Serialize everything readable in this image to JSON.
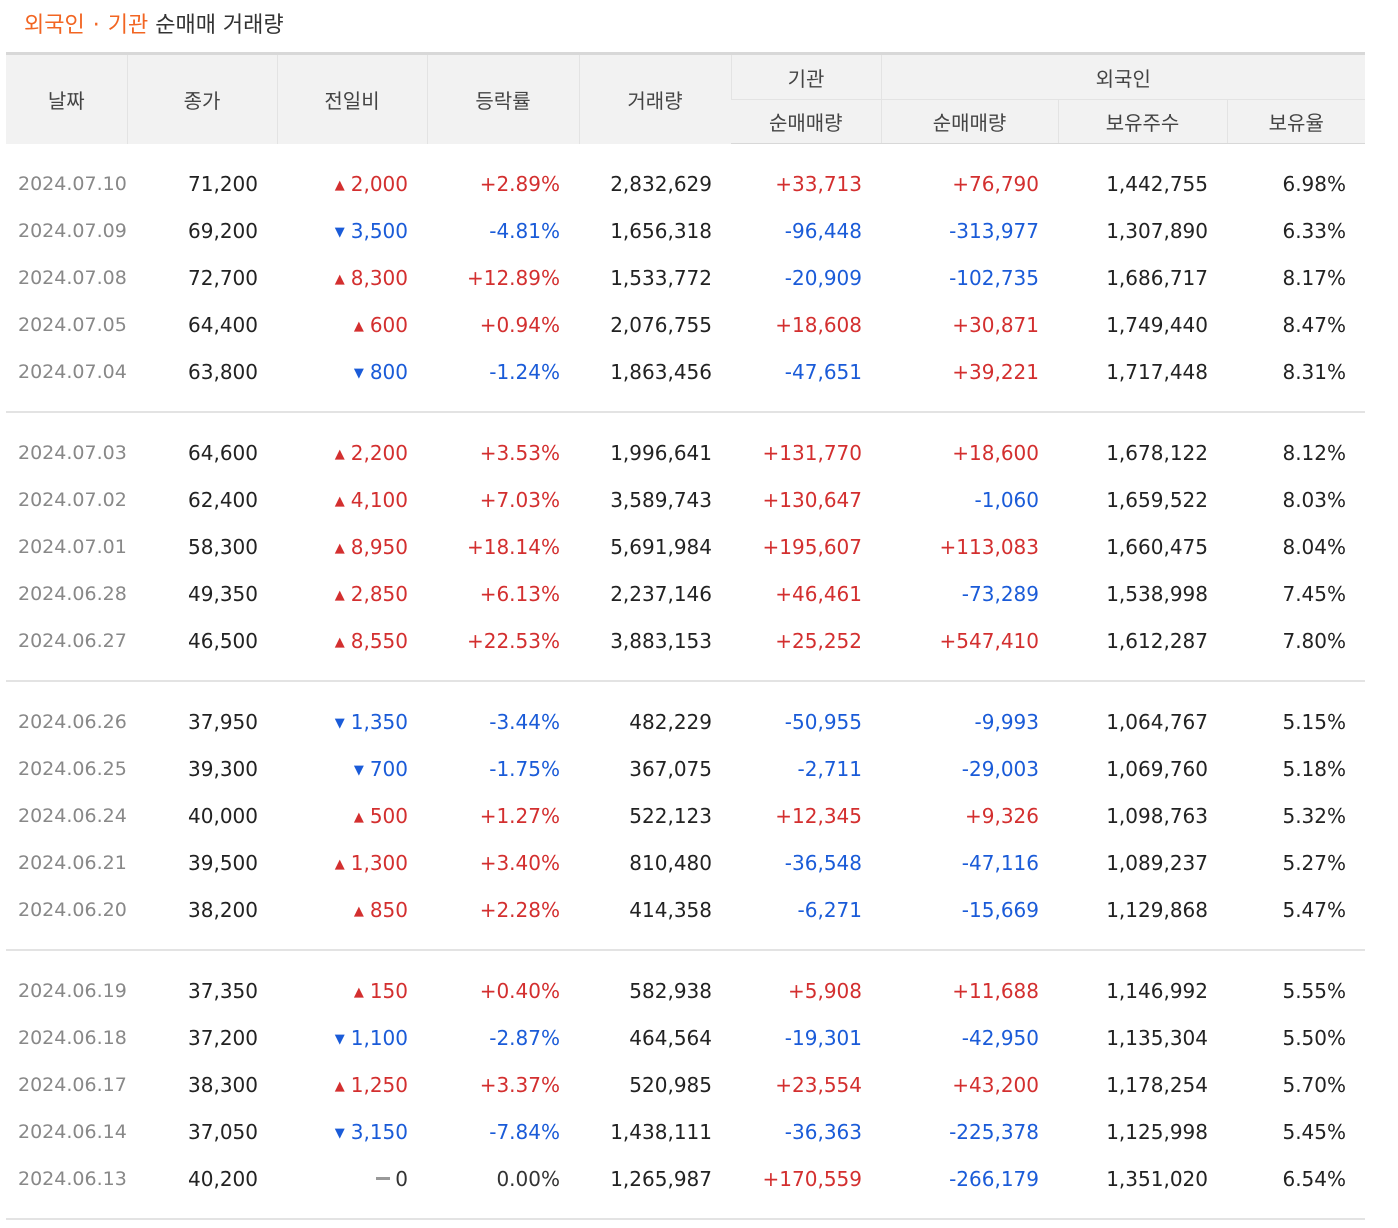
{
  "title": {
    "part1": "외국인",
    "sep": "·",
    "part2": "기관",
    "rest": "순매매 거래량"
  },
  "headers": {
    "date": "날짜",
    "close": "종가",
    "change": "전일비",
    "rate": "등락률",
    "volume": "거래량",
    "institution_group": "기관",
    "institution_net": "순매매량",
    "foreign_group": "외국인",
    "foreign_net": "순매매량",
    "foreign_holding": "보유주수",
    "foreign_ratio": "보유율"
  },
  "colors": {
    "up": "#d32f2f",
    "down": "#1a5bd8",
    "accent": "#f26522"
  },
  "rows": [
    {
      "date": "2024.07.10",
      "close": "71,200",
      "dir": "up",
      "change": "2,000",
      "rate": "+2.89%",
      "volume": "2,832,629",
      "inst": "+33,713",
      "frg": "+76,790",
      "hold": "1,442,755",
      "ratio": "6.98%"
    },
    {
      "date": "2024.07.09",
      "close": "69,200",
      "dir": "down",
      "change": "3,500",
      "rate": "-4.81%",
      "volume": "1,656,318",
      "inst": "-96,448",
      "frg": "-313,977",
      "hold": "1,307,890",
      "ratio": "6.33%"
    },
    {
      "date": "2024.07.08",
      "close": "72,700",
      "dir": "up",
      "change": "8,300",
      "rate": "+12.89%",
      "volume": "1,533,772",
      "inst": "-20,909",
      "frg": "-102,735",
      "hold": "1,686,717",
      "ratio": "8.17%"
    },
    {
      "date": "2024.07.05",
      "close": "64,400",
      "dir": "up",
      "change": "600",
      "rate": "+0.94%",
      "volume": "2,076,755",
      "inst": "+18,608",
      "frg": "+30,871",
      "hold": "1,749,440",
      "ratio": "8.47%"
    },
    {
      "date": "2024.07.04",
      "close": "63,800",
      "dir": "down",
      "change": "800",
      "rate": "-1.24%",
      "volume": "1,863,456",
      "inst": "-47,651",
      "frg": "+39,221",
      "hold": "1,717,448",
      "ratio": "8.31%"
    },
    {
      "date": "2024.07.03",
      "close": "64,600",
      "dir": "up",
      "change": "2,200",
      "rate": "+3.53%",
      "volume": "1,996,641",
      "inst": "+131,770",
      "frg": "+18,600",
      "hold": "1,678,122",
      "ratio": "8.12%"
    },
    {
      "date": "2024.07.02",
      "close": "62,400",
      "dir": "up",
      "change": "4,100",
      "rate": "+7.03%",
      "volume": "3,589,743",
      "inst": "+130,647",
      "frg": "-1,060",
      "hold": "1,659,522",
      "ratio": "8.03%"
    },
    {
      "date": "2024.07.01",
      "close": "58,300",
      "dir": "up",
      "change": "8,950",
      "rate": "+18.14%",
      "volume": "5,691,984",
      "inst": "+195,607",
      "frg": "+113,083",
      "hold": "1,660,475",
      "ratio": "8.04%"
    },
    {
      "date": "2024.06.28",
      "close": "49,350",
      "dir": "up",
      "change": "2,850",
      "rate": "+6.13%",
      "volume": "2,237,146",
      "inst": "+46,461",
      "frg": "-73,289",
      "hold": "1,538,998",
      "ratio": "7.45%"
    },
    {
      "date": "2024.06.27",
      "close": "46,500",
      "dir": "up",
      "change": "8,550",
      "rate": "+22.53%",
      "volume": "3,883,153",
      "inst": "+25,252",
      "frg": "+547,410",
      "hold": "1,612,287",
      "ratio": "7.80%"
    },
    {
      "date": "2024.06.26",
      "close": "37,950",
      "dir": "down",
      "change": "1,350",
      "rate": "-3.44%",
      "volume": "482,229",
      "inst": "-50,955",
      "frg": "-9,993",
      "hold": "1,064,767",
      "ratio": "5.15%"
    },
    {
      "date": "2024.06.25",
      "close": "39,300",
      "dir": "down",
      "change": "700",
      "rate": "-1.75%",
      "volume": "367,075",
      "inst": "-2,711",
      "frg": "-29,003",
      "hold": "1,069,760",
      "ratio": "5.18%"
    },
    {
      "date": "2024.06.24",
      "close": "40,000",
      "dir": "up",
      "change": "500",
      "rate": "+1.27%",
      "volume": "522,123",
      "inst": "+12,345",
      "frg": "+9,326",
      "hold": "1,098,763",
      "ratio": "5.32%"
    },
    {
      "date": "2024.06.21",
      "close": "39,500",
      "dir": "up",
      "change": "1,300",
      "rate": "+3.40%",
      "volume": "810,480",
      "inst": "-36,548",
      "frg": "-47,116",
      "hold": "1,089,237",
      "ratio": "5.27%"
    },
    {
      "date": "2024.06.20",
      "close": "38,200",
      "dir": "up",
      "change": "850",
      "rate": "+2.28%",
      "volume": "414,358",
      "inst": "-6,271",
      "frg": "-15,669",
      "hold": "1,129,868",
      "ratio": "5.47%"
    },
    {
      "date": "2024.06.19",
      "close": "37,350",
      "dir": "up",
      "change": "150",
      "rate": "+0.40%",
      "volume": "582,938",
      "inst": "+5,908",
      "frg": "+11,688",
      "hold": "1,146,992",
      "ratio": "5.55%"
    },
    {
      "date": "2024.06.18",
      "close": "37,200",
      "dir": "down",
      "change": "1,100",
      "rate": "-2.87%",
      "volume": "464,564",
      "inst": "-19,301",
      "frg": "-42,950",
      "hold": "1,135,304",
      "ratio": "5.50%"
    },
    {
      "date": "2024.06.17",
      "close": "38,300",
      "dir": "up",
      "change": "1,250",
      "rate": "+3.37%",
      "volume": "520,985",
      "inst": "+23,554",
      "frg": "+43,200",
      "hold": "1,178,254",
      "ratio": "5.70%"
    },
    {
      "date": "2024.06.14",
      "close": "37,050",
      "dir": "down",
      "change": "3,150",
      "rate": "-7.84%",
      "volume": "1,438,111",
      "inst": "-36,363",
      "frg": "-225,378",
      "hold": "1,125,998",
      "ratio": "5.45%"
    },
    {
      "date": "2024.06.13",
      "close": "40,200",
      "dir": "flat",
      "change": "0",
      "rate": "0.00%",
      "volume": "1,265,987",
      "inst": "+170,559",
      "frg": "-266,179",
      "hold": "1,351,020",
      "ratio": "6.54%"
    }
  ]
}
